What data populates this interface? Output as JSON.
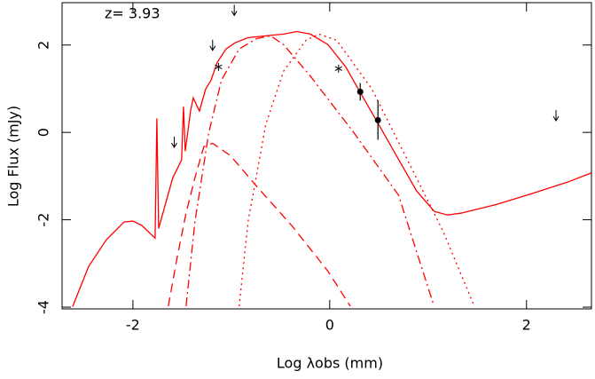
{
  "chart_data": {
    "type": "line",
    "annotation": "z=  3.93",
    "x_label": "Log λobs (mm)",
    "y_label": "Log Flux (mJy)",
    "xlim": [
      -2.72,
      2.66
    ],
    "ylim": [
      -4.04,
      2.97
    ],
    "xticks": [
      -2,
      0,
      2
    ],
    "yticks": [
      -4,
      -2,
      0,
      2
    ],
    "color": "#ff0000",
    "series": [
      {
        "style": "solid",
        "x": [
          -2.613,
          -2.451,
          -2.27,
          -2.09,
          -2.0,
          -1.91,
          -1.775,
          -1.757,
          -1.739,
          -1.595,
          -1.505,
          -1.486,
          -1.468,
          -1.414,
          -1.387,
          -1.324,
          -1.261,
          -1.207,
          -1.144,
          -1.054,
          -0.964,
          -0.829,
          -0.649,
          -0.468,
          -0.333,
          -0.198,
          -0.018,
          0.162,
          0.342,
          0.523,
          0.703,
          0.883,
          1.063,
          1.198,
          1.333,
          1.694,
          2.054,
          2.414,
          2.658
        ],
        "values": [
          -3.99,
          -3.07,
          -2.46,
          -2.05,
          -2.03,
          -2.13,
          -2.42,
          0.32,
          -2.2,
          -1.04,
          -0.63,
          0.59,
          -0.43,
          0.49,
          0.79,
          0.49,
          0.99,
          1.19,
          1.6,
          1.91,
          2.05,
          2.17,
          2.21,
          2.25,
          2.31,
          2.25,
          2.01,
          1.5,
          0.79,
          0.08,
          -0.63,
          -1.34,
          -1.81,
          -1.89,
          -1.85,
          -1.65,
          -1.4,
          -1.14,
          -0.93
        ]
      },
      {
        "style": "dashed",
        "x": [
          -1.64,
          -1.55,
          -1.46,
          -1.37,
          -1.28,
          -1.19,
          -1.01,
          -0.74,
          -0.38,
          -0.02,
          0.21
        ],
        "values": [
          -3.98,
          -2.86,
          -1.85,
          -1.04,
          -0.33,
          -0.25,
          -0.53,
          -1.24,
          -2.15,
          -3.17,
          -3.98
        ]
      },
      {
        "style": "dashdot",
        "x": [
          -1.46,
          -1.37,
          -1.23,
          -1.1,
          -0.92,
          -0.74,
          -0.6,
          -0.47,
          -0.2,
          0.25,
          0.7,
          1.06
        ],
        "values": [
          -3.98,
          -2.05,
          -0.02,
          1.2,
          1.91,
          2.15,
          2.21,
          2.01,
          1.3,
          -0.02,
          -1.44,
          -3.98
        ]
      },
      {
        "style": "dotted",
        "x": [
          -0.92,
          -0.83,
          -0.65,
          -0.47,
          -0.24,
          -0.11,
          0.07,
          0.43,
          0.79,
          1.15,
          1.47
        ],
        "values": [
          -3.98,
          -2.05,
          0.18,
          1.4,
          2.11,
          2.25,
          2.11,
          0.99,
          -0.63,
          -2.25,
          -3.98
        ]
      }
    ],
    "points": {
      "x": [
        0.31,
        0.49
      ],
      "values": [
        0.93,
        0.28
      ],
      "errors": [
        0.2,
        0.45
      ]
    },
    "asterisks": {
      "x": [
        -1.13,
        0.09
      ],
      "values": [
        1.5,
        1.46
      ]
    },
    "upper_limits": {
      "x": [
        -1.58,
        -1.19,
        -0.97,
        2.3
      ],
      "values": [
        -0.22,
        2.0,
        2.8,
        0.39
      ]
    }
  }
}
